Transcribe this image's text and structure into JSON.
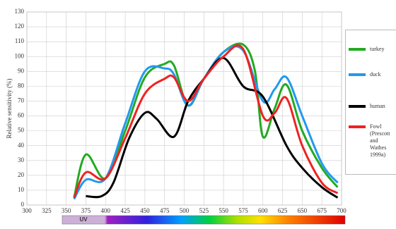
{
  "chart_data": {
    "type": "line",
    "y_label": "Relative sensitivity (%)",
    "annotation": "UV",
    "xlim": [
      300,
      700
    ],
    "xticks": [
      300,
      325,
      350,
      375,
      400,
      425,
      450,
      475,
      500,
      525,
      550,
      575,
      600,
      625,
      650,
      675,
      700
    ],
    "ylim": [
      0,
      130
    ],
    "yticks": [
      0,
      10,
      20,
      30,
      40,
      50,
      60,
      70,
      80,
      90,
      100,
      110,
      120,
      130
    ],
    "grid": true,
    "series": [
      {
        "name": "turkey",
        "color": "#22aa22",
        "x": [
          360,
          375,
          400,
          425,
          450,
          475,
          487,
          505,
          525,
          550,
          575,
          590,
          600,
          615,
          630,
          650,
          675,
          695
        ],
        "values": [
          5,
          34,
          18,
          50,
          86,
          95,
          94,
          67,
          85,
          103,
          108,
          90,
          46,
          65,
          81,
          50,
          25,
          12
        ]
      },
      {
        "name": "duck",
        "color": "#2299ee",
        "x": [
          360,
          375,
          400,
          425,
          450,
          475,
          487,
          505,
          525,
          550,
          575,
          600,
          615,
          630,
          650,
          675,
          695
        ],
        "values": [
          4,
          17,
          18,
          55,
          90,
          92,
          88,
          67,
          85,
          103,
          104,
          70,
          78,
          86,
          60,
          28,
          15
        ]
      },
      {
        "name": "human",
        "color": "#000000",
        "x": [
          375,
          395,
          410,
          430,
          450,
          465,
          487,
          505,
          525,
          550,
          575,
          600,
          630,
          650,
          675,
          695
        ],
        "values": [
          6,
          6,
          15,
          45,
          62,
          58,
          46,
          70,
          85,
          99,
          80,
          73,
          40,
          25,
          12,
          5
        ]
      },
      {
        "name": "Fowl (Prescott and Wathes 1999a)",
        "color": "#ee2222",
        "x": [
          360,
          375,
          400,
          425,
          450,
          475,
          487,
          505,
          525,
          550,
          575,
          600,
          615,
          630,
          650,
          675,
          695
        ],
        "values": [
          5,
          22,
          18,
          45,
          75,
          85,
          86,
          70,
          85,
          100,
          105,
          60,
          62,
          72,
          40,
          15,
          8
        ]
      }
    ]
  }
}
